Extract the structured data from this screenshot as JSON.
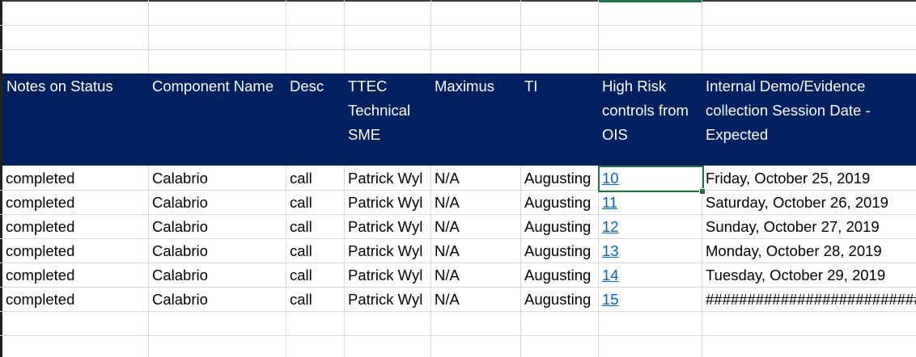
{
  "headers": [
    "Notes on Status",
    "Component Name",
    "Desc",
    "TTEC Technical SME",
    "Maximus",
    "TI",
    "High Risk controls from OIS",
    "Internal Demo/Evidence collection Session Date - Expected"
  ],
  "rows": [
    {
      "status": "completed",
      "component": "Calabrio",
      "desc": "call",
      "sme": "Patrick Wyl",
      "maximus": "N/A",
      "ti": "Augusting",
      "risk": "10",
      "date": "Friday, October 25, 2019"
    },
    {
      "status": "completed",
      "component": "Calabrio",
      "desc": "call",
      "sme": "Patrick Wyl",
      "maximus": "N/A",
      "ti": "Augusting",
      "risk": "11",
      "date": "Saturday, October 26, 2019"
    },
    {
      "status": "completed",
      "component": "Calabrio",
      "desc": "call",
      "sme": "Patrick Wyl",
      "maximus": "N/A",
      "ti": "Augusting",
      "risk": "12",
      "date": "Sunday, October 27, 2019"
    },
    {
      "status": "completed",
      "component": "Calabrio",
      "desc": "call",
      "sme": "Patrick Wyl",
      "maximus": "N/A",
      "ti": "Augusting",
      "risk": "13",
      "date": "Monday, October 28, 2019"
    },
    {
      "status": "completed",
      "component": "Calabrio",
      "desc": "call",
      "sme": "Patrick Wyl",
      "maximus": "N/A",
      "ti": "Augusting",
      "risk": "14",
      "date": "Tuesday, October 29, 2019"
    },
    {
      "status": "completed",
      "component": "Calabrio",
      "desc": "call",
      "sme": "Patrick Wyl",
      "maximus": "N/A",
      "ti": "Augusting",
      "risk": "15",
      "date": "##############################"
    }
  ],
  "colors": {
    "header_bg": "#002060",
    "header_text": "#ffffff",
    "link": "#0563c1",
    "selection": "#217346",
    "gridline": "#d9d9d9"
  }
}
